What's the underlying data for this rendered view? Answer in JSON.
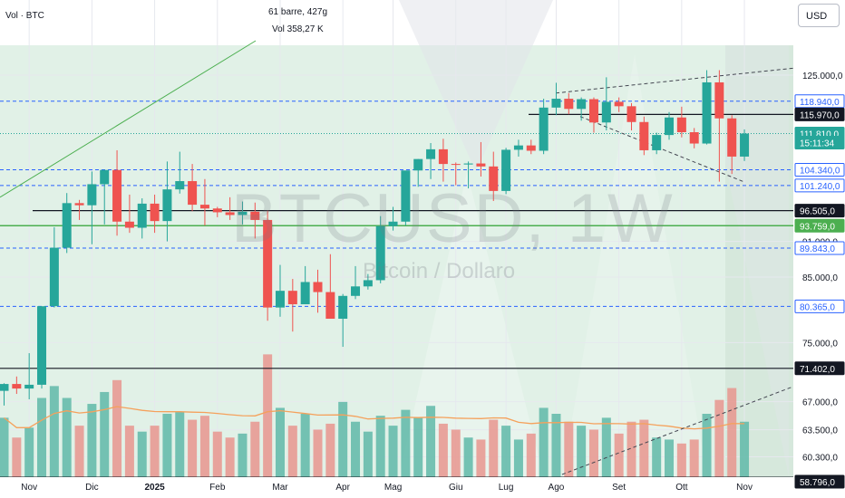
{
  "header": {
    "indicator_label": "Vol · BTC",
    "bars_info": "61 barre, 427g",
    "volume_info": "Vol 358,27 K",
    "currency_button": "USD"
  },
  "watermark": {
    "symbol": "BTCUSD, 1W",
    "description": "Bitcoin / Dollaro"
  },
  "colors": {
    "up": "#26a69a",
    "down": "#ef5350",
    "volume_up": "#5fb8a8",
    "volume_down": "#e8958e",
    "zone_fill": "#d7ecdf",
    "hline_black": "#131722",
    "hline_green": "#4caf50",
    "hline_blue_dashed": "#2962ff",
    "label_blue": "#2962ff",
    "ma_orange": "#f5a15c"
  },
  "chart_data": {
    "type": "candlestick",
    "title": "",
    "xlabel": "",
    "ylabel": "",
    "scale": "log",
    "ylim": [
      58000,
      133500
    ],
    "x_tick_labels": [
      "Nov",
      "Dic",
      "2025",
      "Feb",
      "Mar",
      "Apr",
      "Mag",
      "Giu",
      "Lug",
      "Ago",
      "Set",
      "Ott",
      "Nov"
    ],
    "x_tick_weeks": [
      2,
      7,
      12,
      17,
      22,
      27,
      31,
      36,
      40,
      44,
      49,
      54,
      59
    ],
    "y_ticks": [
      "125.000,0",
      "91.000,0",
      "85.000,0",
      "75.000,0",
      "67.000,0",
      "63.500,0",
      "60.300,0"
    ],
    "y_tick_values": [
      125000,
      91000,
      85000,
      75000,
      67000,
      63500,
      60300
    ],
    "price_labels": [
      {
        "text": "118.940,0",
        "value": 118940,
        "style": "blue"
      },
      {
        "text": "115.970,0",
        "value": 115970,
        "style": "black"
      },
      {
        "text": "111.810,0",
        "value": 111810,
        "style": "current"
      },
      {
        "text": "15:11:34",
        "value": 109900,
        "style": "current"
      },
      {
        "text": "104.340,0",
        "value": 104340,
        "style": "blue"
      },
      {
        "text": "101.240,0",
        "value": 101240,
        "style": "blue"
      },
      {
        "text": "96.505,0",
        "value": 96505,
        "style": "black"
      },
      {
        "text": "93.759,0",
        "value": 93759,
        "style": "green"
      },
      {
        "text": "89.843,0",
        "value": 89843,
        "style": "blue"
      },
      {
        "text": "80.365,0",
        "value": 80365,
        "style": "blue"
      },
      {
        "text": "71.402,0",
        "value": 71402,
        "style": "black"
      },
      {
        "text": "58.796,0",
        "value": 58796,
        "style": "black"
      }
    ],
    "horizontal_lines": [
      {
        "value": 118940,
        "style": "blue-dashed"
      },
      {
        "value": 115970,
        "style": "black-partial"
      },
      {
        "value": 111810,
        "style": "teal-dotted"
      },
      {
        "value": 104340,
        "style": "blue-dashed"
      },
      {
        "value": 101240,
        "style": "blue-dashed"
      },
      {
        "value": 96505,
        "style": "black"
      },
      {
        "value": 93759,
        "style": "green"
      },
      {
        "value": 89843,
        "style": "blue-dashed"
      },
      {
        "value": 80365,
        "style": "blue-dashed"
      },
      {
        "value": 71402,
        "style": "black"
      }
    ],
    "series": [
      {
        "o": 68400,
        "h": 69400,
        "l": 66500,
        "c": 69300,
        "v": 150
      },
      {
        "o": 69300,
        "h": 70300,
        "l": 68000,
        "c": 68700,
        "v": 100
      },
      {
        "o": 68700,
        "h": 73500,
        "l": 67300,
        "c": 69200,
        "v": 125
      },
      {
        "o": 69200,
        "h": 76800,
        "l": 68700,
        "c": 80400,
        "v": 200
      },
      {
        "o": 80400,
        "h": 93500,
        "l": 80200,
        "c": 89900,
        "v": 230
      },
      {
        "o": 89900,
        "h": 99800,
        "l": 89000,
        "c": 97900,
        "v": 200
      },
      {
        "o": 97900,
        "h": 98500,
        "l": 94800,
        "c": 97500,
        "v": 130
      },
      {
        "o": 97500,
        "h": 104000,
        "l": 90500,
        "c": 101500,
        "v": 185
      },
      {
        "o": 101500,
        "h": 104300,
        "l": 94000,
        "c": 104300,
        "v": 215
      },
      {
        "o": 104300,
        "h": 108300,
        "l": 92000,
        "c": 94500,
        "v": 245
      },
      {
        "o": 94500,
        "h": 99500,
        "l": 92500,
        "c": 93400,
        "v": 130
      },
      {
        "o": 93400,
        "h": 98800,
        "l": 91500,
        "c": 97800,
        "v": 115
      },
      {
        "o": 97800,
        "h": 99500,
        "l": 92500,
        "c": 94600,
        "v": 130
      },
      {
        "o": 94600,
        "h": 106000,
        "l": 91000,
        "c": 100500,
        "v": 160
      },
      {
        "o": 100500,
        "h": 108000,
        "l": 99700,
        "c": 102100,
        "v": 165
      },
      {
        "o": 102100,
        "h": 105500,
        "l": 96400,
        "c": 97600,
        "v": 145
      },
      {
        "o": 97600,
        "h": 102500,
        "l": 93800,
        "c": 96900,
        "v": 155
      },
      {
        "o": 96900,
        "h": 97200,
        "l": 95300,
        "c": 96200,
        "v": 115
      },
      {
        "o": 96200,
        "h": 99000,
        "l": 94800,
        "c": 95700,
        "v": 100
      },
      {
        "o": 95700,
        "h": 98200,
        "l": 94000,
        "c": 96300,
        "v": 110
      },
      {
        "o": 96300,
        "h": 98000,
        "l": 91500,
        "c": 94800,
        "v": 140
      },
      {
        "o": 94800,
        "h": 96500,
        "l": 78200,
        "c": 80200,
        "v": 310
      },
      {
        "o": 80200,
        "h": 87000,
        "l": 78800,
        "c": 82800,
        "v": 175
      },
      {
        "o": 82800,
        "h": 84700,
        "l": 76600,
        "c": 80700,
        "v": 130
      },
      {
        "o": 80700,
        "h": 86800,
        "l": 80700,
        "c": 84200,
        "v": 160
      },
      {
        "o": 84200,
        "h": 86200,
        "l": 79400,
        "c": 82600,
        "v": 120
      },
      {
        "o": 82600,
        "h": 88800,
        "l": 78500,
        "c": 78500,
        "v": 135
      },
      {
        "o": 78500,
        "h": 82300,
        "l": 74400,
        "c": 82000,
        "v": 190
      },
      {
        "o": 82000,
        "h": 86800,
        "l": 81500,
        "c": 83500,
        "v": 140
      },
      {
        "o": 83500,
        "h": 85500,
        "l": 83000,
        "c": 84500,
        "v": 115
      },
      {
        "o": 84500,
        "h": 95500,
        "l": 84000,
        "c": 93700,
        "v": 155
      },
      {
        "o": 93700,
        "h": 97200,
        "l": 92900,
        "c": 94500,
        "v": 130
      },
      {
        "o": 94500,
        "h": 104000,
        "l": 93800,
        "c": 104200,
        "v": 170
      },
      {
        "o": 104200,
        "h": 106500,
        "l": 101000,
        "c": 106500,
        "v": 150
      },
      {
        "o": 106500,
        "h": 109800,
        "l": 102500,
        "c": 108500,
        "v": 180
      },
      {
        "o": 108500,
        "h": 110700,
        "l": 102000,
        "c": 105500,
        "v": 135
      },
      {
        "o": 105500,
        "h": 105800,
        "l": 101300,
        "c": 105400,
        "v": 120
      },
      {
        "o": 105400,
        "h": 106000,
        "l": 100700,
        "c": 105600,
        "v": 100
      },
      {
        "o": 105600,
        "h": 110000,
        "l": 103000,
        "c": 105000,
        "v": 95
      },
      {
        "o": 105000,
        "h": 108000,
        "l": 98300,
        "c": 100200,
        "v": 145
      },
      {
        "o": 100200,
        "h": 108800,
        "l": 99600,
        "c": 108400,
        "v": 130
      },
      {
        "o": 108400,
        "h": 110500,
        "l": 107000,
        "c": 109300,
        "v": 95
      },
      {
        "o": 109300,
        "h": 110500,
        "l": 107500,
        "c": 108200,
        "v": 110
      },
      {
        "o": 108200,
        "h": 119500,
        "l": 107500,
        "c": 117500,
        "v": 175
      },
      {
        "o": 117500,
        "h": 123200,
        "l": 115800,
        "c": 119500,
        "v": 160
      },
      {
        "o": 119500,
        "h": 120800,
        "l": 116000,
        "c": 117200,
        "v": 140
      },
      {
        "o": 117200,
        "h": 119800,
        "l": 114600,
        "c": 119400,
        "v": 130
      },
      {
        "o": 119400,
        "h": 119800,
        "l": 112000,
        "c": 114200,
        "v": 120
      },
      {
        "o": 114200,
        "h": 124500,
        "l": 112500,
        "c": 118800,
        "v": 150
      },
      {
        "o": 118800,
        "h": 119800,
        "l": 116500,
        "c": 117800,
        "v": 110
      },
      {
        "o": 117800,
        "h": 118500,
        "l": 112500,
        "c": 114300,
        "v": 140
      },
      {
        "o": 114300,
        "h": 115500,
        "l": 107300,
        "c": 108300,
        "v": 145
      },
      {
        "o": 108300,
        "h": 112000,
        "l": 107500,
        "c": 111500,
        "v": 100
      },
      {
        "o": 111500,
        "h": 116500,
        "l": 110500,
        "c": 115300,
        "v": 95
      },
      {
        "o": 115300,
        "h": 117700,
        "l": 111000,
        "c": 112100,
        "v": 85
      },
      {
        "o": 112100,
        "h": 113000,
        "l": 108700,
        "c": 109700,
        "v": 95
      },
      {
        "o": 109700,
        "h": 126200,
        "l": 109500,
        "c": 123300,
        "v": 160
      },
      {
        "o": 123300,
        "h": 126200,
        "l": 102000,
        "c": 115100,
        "v": 195
      },
      {
        "o": 115100,
        "h": 115800,
        "l": 103500,
        "c": 107000,
        "v": 225
      },
      {
        "o": 107000,
        "h": 112700,
        "l": 106100,
        "c": 111810,
        "v": 140
      }
    ]
  }
}
